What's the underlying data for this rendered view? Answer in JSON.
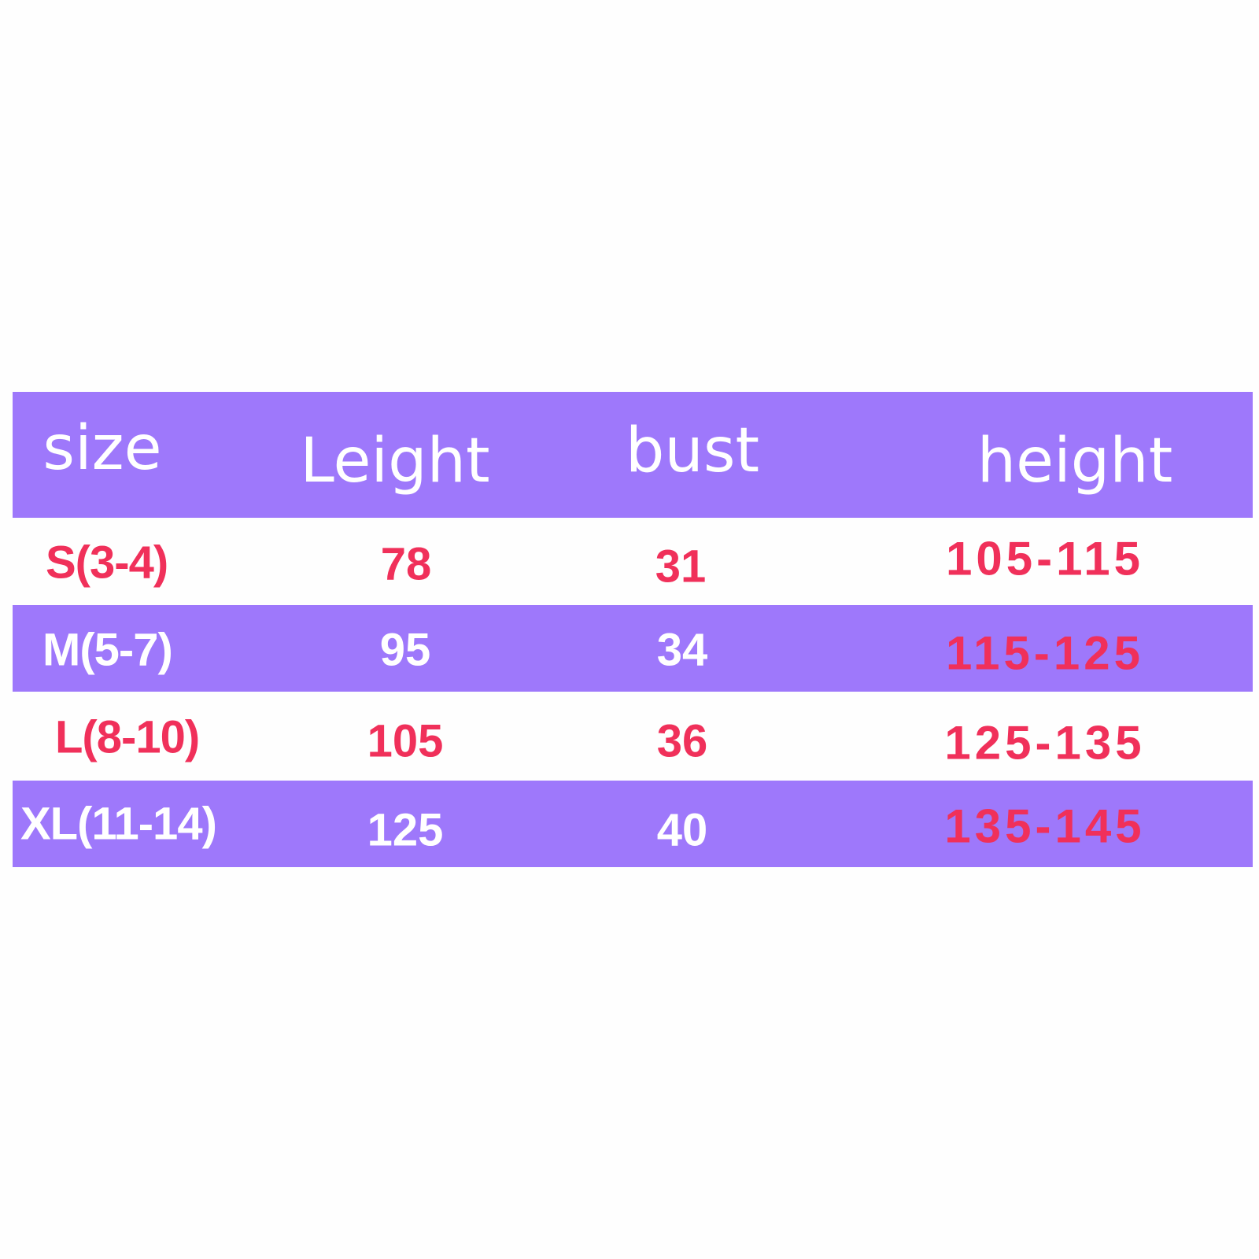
{
  "colors": {
    "band": "#9e78fb",
    "accent_text": "#f0305a",
    "light_text": "#ffffff"
  },
  "table": {
    "headers": [
      "size",
      "Leight",
      "bust",
      "height"
    ],
    "rows": [
      {
        "size": "S(3-4)",
        "length": "78",
        "bust": "31",
        "height": "105-115"
      },
      {
        "size": "M(5-7)",
        "length": "95",
        "bust": "34",
        "height": "115-125"
      },
      {
        "size": "L(8-10)",
        "length": "105",
        "bust": "36",
        "height": "125-135"
      },
      {
        "size": "XL(11-14)",
        "length": "125",
        "bust": "40",
        "height": "135-145"
      }
    ]
  }
}
